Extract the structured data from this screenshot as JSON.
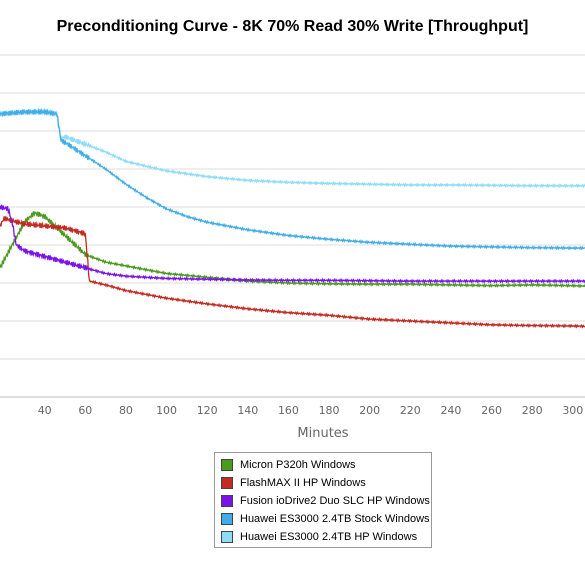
{
  "chart_data": {
    "type": "line",
    "title": "Preconditioning Curve - 8K 70% Read 30% Write [Throughput]",
    "xlabel": "Minutes",
    "ylabel": "",
    "xlim": [
      18,
      306
    ],
    "ylim": [
      0,
      9
    ],
    "x_ticks": [
      "40",
      "60",
      "80",
      "100",
      "120",
      "140",
      "160",
      "180",
      "200",
      "220",
      "240",
      "260",
      "280",
      "300"
    ],
    "grid": "horizontal",
    "legend_position": "bottom-center",
    "series": [
      {
        "name": "Micron P320h Windows",
        "color": "#4a9a1f",
        "x": [
          18,
          24,
          30,
          35,
          40,
          45,
          50,
          60,
          70,
          80,
          100,
          120,
          140,
          160,
          180,
          200,
          220,
          240,
          260,
          280,
          300,
          306
        ],
        "y": [
          3.4,
          4.0,
          4.6,
          4.85,
          4.75,
          4.5,
          4.25,
          3.75,
          3.55,
          3.45,
          3.25,
          3.15,
          3.05,
          3.0,
          2.98,
          2.97,
          2.97,
          2.95,
          2.93,
          2.95,
          2.93,
          2.92
        ]
      },
      {
        "name": "FlashMAX II HP Windows",
        "color": "#c22a22",
        "x": [
          18,
          20,
          30,
          40,
          50,
          60,
          62,
          70,
          80,
          100,
          120,
          140,
          160,
          180,
          200,
          220,
          240,
          260,
          280,
          300,
          306
        ],
        "y": [
          4.5,
          4.7,
          4.55,
          4.5,
          4.45,
          4.3,
          3.05,
          2.95,
          2.8,
          2.6,
          2.45,
          2.32,
          2.22,
          2.15,
          2.05,
          2.0,
          1.95,
          1.9,
          1.88,
          1.87,
          1.86
        ]
      },
      {
        "name": "Fusion ioDrive2 Duo SLC HP Windows",
        "color": "#7b13e8",
        "x": [
          18,
          22,
          24,
          26,
          30,
          40,
          50,
          60,
          70,
          80,
          100,
          120,
          140,
          160,
          180,
          200,
          220,
          240,
          260,
          280,
          300,
          306
        ],
        "y": [
          5.0,
          4.95,
          4.6,
          4.0,
          3.85,
          3.7,
          3.55,
          3.4,
          3.25,
          3.18,
          3.12,
          3.1,
          3.08,
          3.07,
          3.07,
          3.06,
          3.05,
          3.05,
          3.05,
          3.05,
          3.05,
          3.05
        ]
      },
      {
        "name": "Huawei ES3000 2.4TB Stock Windows",
        "color": "#41ade8",
        "x": [
          18,
          30,
          40,
          46,
          48,
          50,
          60,
          70,
          80,
          90,
          100,
          110,
          120,
          140,
          160,
          180,
          200,
          220,
          240,
          260,
          280,
          300,
          306
        ],
        "y": [
          7.45,
          7.5,
          7.5,
          7.45,
          6.75,
          6.7,
          6.35,
          6.0,
          5.6,
          5.25,
          4.95,
          4.75,
          4.6,
          4.4,
          4.25,
          4.15,
          4.07,
          4.02,
          3.97,
          3.95,
          3.93,
          3.92,
          3.92
        ]
      },
      {
        "name": "Huawei ES3000 2.4TB HP Windows",
        "color": "#8fdcf8",
        "x": [
          18,
          30,
          40,
          46,
          48,
          50,
          60,
          70,
          80,
          100,
          120,
          140,
          160,
          180,
          200,
          220,
          240,
          260,
          280,
          300,
          306
        ],
        "y": [
          7.45,
          7.5,
          7.5,
          7.45,
          6.8,
          6.85,
          6.65,
          6.45,
          6.2,
          5.95,
          5.8,
          5.7,
          5.65,
          5.62,
          5.6,
          5.58,
          5.58,
          5.57,
          5.56,
          5.56,
          5.56
        ]
      }
    ]
  }
}
